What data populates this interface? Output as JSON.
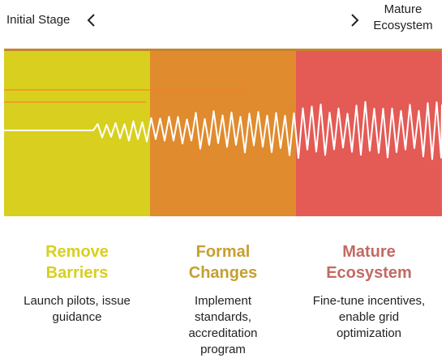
{
  "header": {
    "start_label": "Initial Stage",
    "end_label": [
      "Mature",
      "Ecosystem"
    ]
  },
  "stages": [
    {
      "title": [
        "Remove",
        "Barriers"
      ],
      "desc": [
        "Launch pilots, issue",
        "guidance"
      ],
      "color": "#d8cf1f",
      "title_color": "#d8cf1f"
    },
    {
      "title": [
        "Formal",
        "Changes"
      ],
      "desc": [
        "Implement",
        "standards,",
        "accreditation",
        "program"
      ],
      "color": "#e08b2e",
      "title_color": "#c4a030"
    },
    {
      "title": [
        "Mature",
        "Ecosystem"
      ],
      "desc": [
        "Fine-tune incentives,",
        "enable grid",
        "optimization"
      ],
      "color": "#e45a55",
      "title_color": "#c26a63"
    }
  ],
  "colors": {
    "top_strip": "#c5842c",
    "signal_line": "#ffffff",
    "decor_line": "#ff7a2a"
  },
  "icons": {
    "left": "chevron-left-icon",
    "right": "chevron-right-icon"
  }
}
